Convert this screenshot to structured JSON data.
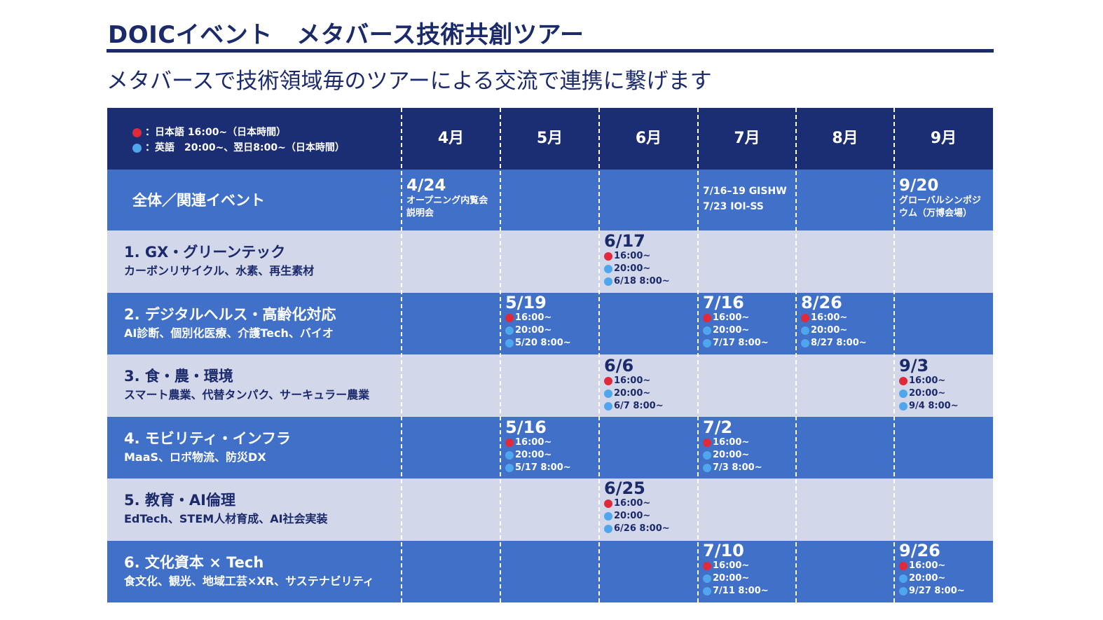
{
  "title": "DOICイベント　メタバース技術共創ツアー",
  "subtitle": "メタバースで技術領域毎のツアーによる交流で連携に繋げます",
  "colors": {
    "navy": "#1b2d73",
    "blue_row": "#4070c8",
    "light_row": "#d3d7ea",
    "red_dot": "#e02a3c",
    "blue_dot": "#4fa6ec"
  },
  "legend": {
    "japanese": "：日本語 16:00~（日本時間）",
    "english": "：英語　20:00~、翌日8:00~（日本時間）"
  },
  "months": [
    "4月",
    "5月",
    "6月",
    "7月",
    "8月",
    "9月"
  ],
  "overall": {
    "label": "全体／関連イベント",
    "apr_date": "4/24",
    "apr_line1": "オープニング内覧会",
    "apr_line2": "説明会",
    "jul_line1": "7/16–19 GISHW",
    "jul_line2": "7/23 IOI-SS",
    "sep_date": "9/20",
    "sep_line1": "グローバルシンポジ",
    "sep_line2": "ウム（万博会場）"
  },
  "categories": [
    {
      "title": "1. GX・グリーンテック",
      "sub": "カーボンリサイクル、水素、再生素材",
      "sessions": [
        {
          "month": 2,
          "date": "6/17",
          "jp": "16:00~",
          "en1": "20:00~",
          "en2": "6/18 8:00~"
        }
      ]
    },
    {
      "title": "2. デジタルヘルス・高齢化対応",
      "sub": "AI診断、個別化医療、介護Tech、バイオ",
      "sessions": [
        {
          "month": 1,
          "date": "5/19",
          "jp": "16:00~",
          "en1": "20:00~",
          "en2": "5/20 8:00~"
        },
        {
          "month": 3,
          "date": "7/16",
          "jp": "16:00~",
          "en1": "20:00~",
          "en2": "7/17 8:00~"
        },
        {
          "month": 4,
          "date": "8/26",
          "jp": "16:00~",
          "en1": "20:00~",
          "en2": "8/27 8:00~"
        }
      ]
    },
    {
      "title": "3. 食・農・環境",
      "sub": "スマート農業、代替タンパク、サーキュラー農業",
      "sessions": [
        {
          "month": 2,
          "date": "6/6",
          "jp": "16:00~",
          "en1": "20:00~",
          "en2": "6/7 8:00~"
        },
        {
          "month": 5,
          "date": "9/3",
          "jp": "16:00~",
          "en1": "20:00~",
          "en2": "9/4 8:00~"
        }
      ]
    },
    {
      "title": "4. モビリティ・インフラ",
      "sub": "MaaS、ロボ物流、防災DX",
      "sessions": [
        {
          "month": 1,
          "date": "5/16",
          "jp": "16:00~",
          "en1": "20:00~",
          "en2": "5/17 8:00~"
        },
        {
          "month": 3,
          "date": "7/2",
          "jp": "16:00~",
          "en1": "20:00~",
          "en2": "7/3 8:00~"
        }
      ]
    },
    {
      "title": "5. 教育・AI倫理",
      "sub": "EdTech、STEM人材育成、AI社会実装",
      "sessions": [
        {
          "month": 2,
          "date": "6/25",
          "jp": "16:00~",
          "en1": "20:00~",
          "en2": "6/26 8:00~"
        }
      ]
    },
    {
      "title": "6. 文化資本 × Tech",
      "sub": "食文化、観光、地域工芸×XR、サステナビリティ",
      "sessions": [
        {
          "month": 3,
          "date": "7/10",
          "jp": "16:00~",
          "en1": "20:00~",
          "en2": "7/11 8:00~"
        },
        {
          "month": 5,
          "date": "9/26",
          "jp": "16:00~",
          "en1": "20:00~",
          "en2": "9/27 8:00~"
        }
      ]
    }
  ]
}
